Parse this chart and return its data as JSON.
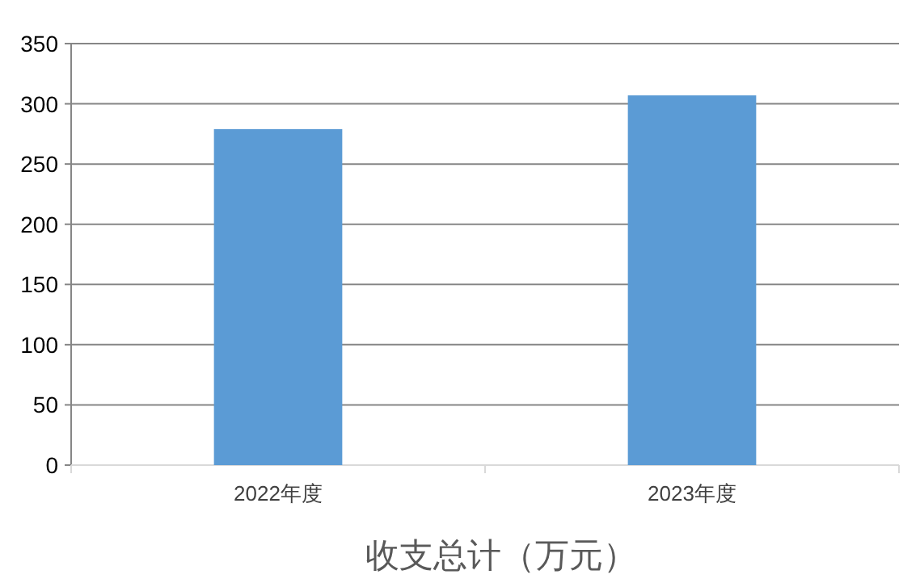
{
  "chart_data": {
    "type": "bar",
    "xlabel": "收支总计（万元）",
    "categories": [
      "2022年度",
      "2023年度"
    ],
    "values": [
      279,
      307
    ],
    "color": "#5b9bd5",
    "ylim": [
      0,
      350
    ],
    "yticks": [
      0,
      50,
      100,
      150,
      200,
      250,
      300,
      350
    ],
    "grid": "y"
  }
}
